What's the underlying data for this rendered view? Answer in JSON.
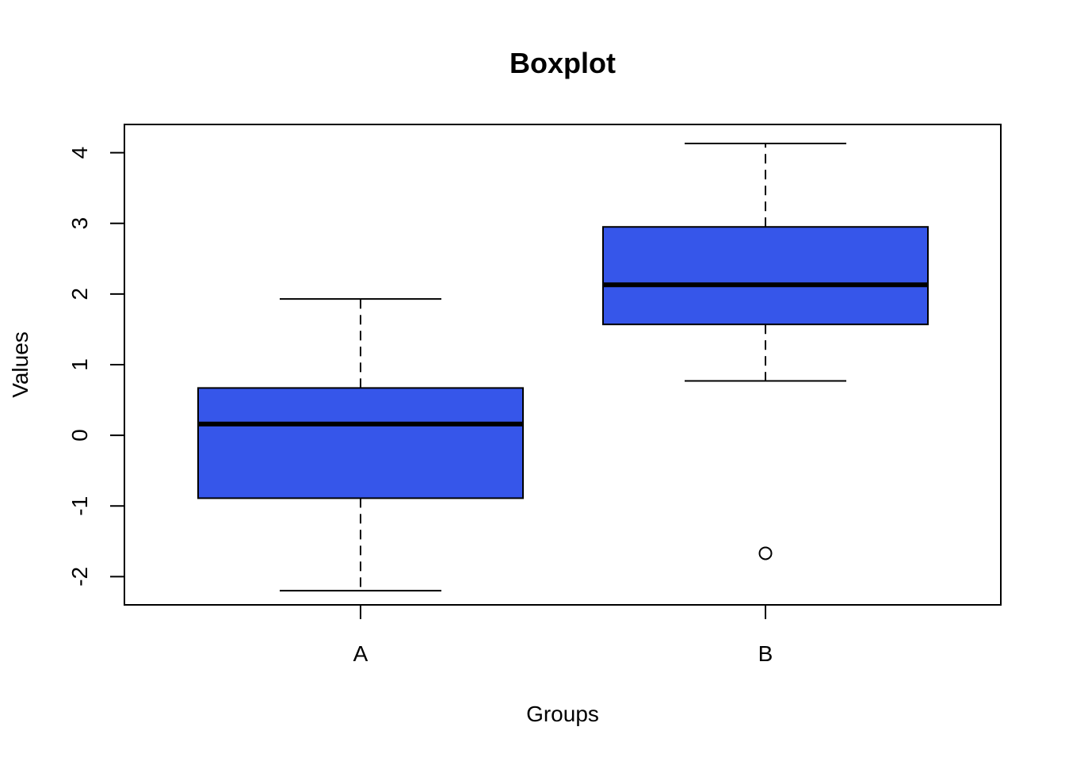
{
  "chart_data": {
    "type": "boxplot",
    "title": "Boxplot",
    "xlabel": "Groups",
    "ylabel": "Values",
    "ylim": [
      -2.4,
      4.4
    ],
    "y_ticks": [
      -2,
      -1,
      0,
      1,
      2,
      3,
      4
    ],
    "y_tick_labels": [
      "-2",
      "-1",
      "0",
      "1",
      "2",
      "3",
      "4"
    ],
    "categories": [
      "A",
      "B"
    ],
    "boxes": [
      {
        "name": "A",
        "whisker_low": -2.2,
        "q1": -0.89,
        "median": 0.16,
        "q3": 0.67,
        "whisker_high": 1.93,
        "outliers": []
      },
      {
        "name": "B",
        "whisker_low": 0.77,
        "q1": 1.57,
        "median": 2.13,
        "q3": 2.95,
        "whisker_high": 4.13,
        "outliers": [
          -1.67
        ]
      }
    ],
    "box_color": "#3656ea",
    "grid": false,
    "legend": "none"
  }
}
